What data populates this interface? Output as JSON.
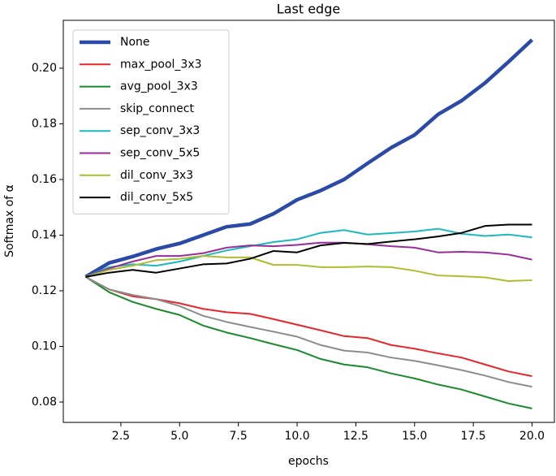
{
  "chart_data": {
    "type": "line",
    "title": "Last edge",
    "x_label": "epochs",
    "y_label": "Softmax of α",
    "x": [
      1,
      2,
      3,
      4,
      5,
      6,
      7,
      8,
      9,
      10,
      11,
      12,
      13,
      14,
      15,
      16,
      17,
      18,
      19,
      20
    ],
    "xlim": [
      0.05,
      20.95
    ],
    "ylim": [
      0.0727,
      0.2172
    ],
    "xticks": [
      2.5,
      {
        "value": 5,
        "label": "5.0"
      },
      7.5,
      {
        "value": 10,
        "label": "10.0"
      },
      12.5,
      {
        "value": 15,
        "label": "15.0"
      },
      17.5,
      {
        "value": 20,
        "label": "20.0"
      }
    ],
    "yticks": [
      0.08,
      {
        "value": 0.1,
        "label": "0.10"
      },
      0.12,
      0.14,
      0.16,
      0.18,
      {
        "value": 0.2,
        "label": "0.20"
      }
    ],
    "grid": false,
    "legend": "upper-left",
    "series": [
      {
        "name": "None",
        "color": "#2b4aa8",
        "values": [
          0.125,
          0.13,
          0.1323,
          0.135,
          0.137,
          0.14,
          0.143,
          0.144,
          0.1477,
          0.1527,
          0.156,
          0.16,
          0.1658,
          0.1714,
          0.176,
          0.1834,
          0.1883,
          0.1947,
          0.2023,
          0.2102
        ]
      },
      {
        "name": "max_pool_3x3",
        "color": "#e8262a",
        "values": [
          0.125,
          0.1205,
          0.118,
          0.117,
          0.1155,
          0.1135,
          0.1123,
          0.1117,
          0.1098,
          0.1078,
          0.1058,
          0.1037,
          0.103,
          0.1005,
          0.0992,
          0.0975,
          0.096,
          0.0935,
          0.091,
          0.0893
        ]
      },
      {
        "name": "avg_pool_3x3",
        "color": "#198a2a",
        "values": [
          0.125,
          0.1195,
          0.116,
          0.1135,
          0.1113,
          0.1075,
          0.105,
          0.103,
          0.1008,
          0.0987,
          0.0955,
          0.0935,
          0.0925,
          0.0903,
          0.0885,
          0.0863,
          0.0845,
          0.082,
          0.0795,
          0.0777
        ]
      },
      {
        "name": "skip_connect",
        "color": "#8c8c8c",
        "values": [
          0.125,
          0.1205,
          0.1185,
          0.117,
          0.1145,
          0.111,
          0.1088,
          0.107,
          0.1053,
          0.1035,
          0.1005,
          0.0985,
          0.0978,
          0.096,
          0.0948,
          0.0932,
          0.0915,
          0.0895,
          0.0872,
          0.0855
        ]
      },
      {
        "name": "sep_conv_3x3",
        "color": "#1cb8c0",
        "values": [
          0.125,
          0.1285,
          0.1295,
          0.129,
          0.1305,
          0.1325,
          0.1345,
          0.136,
          0.1375,
          0.1385,
          0.1408,
          0.1418,
          0.1402,
          0.1407,
          0.1413,
          0.1423,
          0.1405,
          0.1397,
          0.1402,
          0.1392
        ]
      },
      {
        "name": "sep_conv_5x5",
        "color": "#9a2c9a",
        "values": [
          0.125,
          0.128,
          0.1305,
          0.1325,
          0.1325,
          0.1335,
          0.1355,
          0.1363,
          0.136,
          0.1365,
          0.1373,
          0.1373,
          0.1367,
          0.136,
          0.1355,
          0.1338,
          0.134,
          0.1338,
          0.133,
          0.1312
        ]
      },
      {
        "name": "dil_conv_3x3",
        "color": "#b0bc30",
        "values": [
          0.125,
          0.1275,
          0.129,
          0.131,
          0.1315,
          0.1325,
          0.132,
          0.132,
          0.1293,
          0.1293,
          0.1285,
          0.1285,
          0.1287,
          0.1285,
          0.1272,
          0.1255,
          0.1252,
          0.1248,
          0.1235,
          0.1238
        ]
      },
      {
        "name": "dil_conv_5x5",
        "color": "#000000",
        "values": [
          0.125,
          0.1265,
          0.1275,
          0.1265,
          0.128,
          0.1295,
          0.1298,
          0.1315,
          0.1343,
          0.1338,
          0.1363,
          0.1372,
          0.1368,
          0.1377,
          0.1385,
          0.1395,
          0.1408,
          0.1433,
          0.1438,
          0.1438
        ]
      }
    ]
  }
}
